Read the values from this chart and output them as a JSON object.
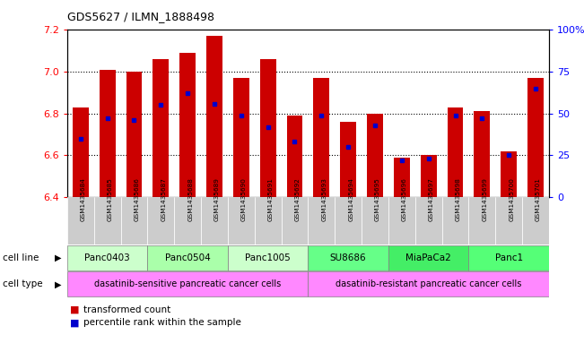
{
  "title": "GDS5627 / ILMN_1888498",
  "samples": [
    "GSM1435684",
    "GSM1435685",
    "GSM1435686",
    "GSM1435687",
    "GSM1435688",
    "GSM1435689",
    "GSM1435690",
    "GSM1435691",
    "GSM1435692",
    "GSM1435693",
    "GSM1435694",
    "GSM1435695",
    "GSM1435696",
    "GSM1435697",
    "GSM1435698",
    "GSM1435699",
    "GSM1435700",
    "GSM1435701"
  ],
  "transformed_count": [
    6.83,
    7.01,
    7.0,
    7.06,
    7.09,
    7.17,
    6.97,
    7.06,
    6.79,
    6.97,
    6.76,
    6.8,
    6.59,
    6.6,
    6.83,
    6.81,
    6.62,
    6.97
  ],
  "percentile": [
    35,
    47,
    46,
    55,
    62,
    56,
    49,
    42,
    33,
    49,
    30,
    43,
    22,
    23,
    49,
    47,
    25,
    65
  ],
  "cell_lines": [
    {
      "name": "Panc0403",
      "start": 0,
      "end": 3,
      "color": "#ccffcc"
    },
    {
      "name": "Panc0504",
      "start": 3,
      "end": 6,
      "color": "#aaffaa"
    },
    {
      "name": "Panc1005",
      "start": 6,
      "end": 9,
      "color": "#ccffcc"
    },
    {
      "name": "SU8686",
      "start": 9,
      "end": 12,
      "color": "#66ff88"
    },
    {
      "name": "MiaPaCa2",
      "start": 12,
      "end": 15,
      "color": "#44ee66"
    },
    {
      "name": "Panc1",
      "start": 15,
      "end": 18,
      "color": "#55ff77"
    }
  ],
  "cell_types": [
    {
      "name": "dasatinib-sensitive pancreatic cancer cells",
      "start": 0,
      "end": 9
    },
    {
      "name": "dasatinib-resistant pancreatic cancer cells",
      "start": 9,
      "end": 18
    }
  ],
  "cell_type_color": "#ff88ff",
  "sample_bg_color": "#cccccc",
  "ylim_left": [
    6.4,
    7.2
  ],
  "ylim_right": [
    0,
    100
  ],
  "yticks_left": [
    6.4,
    6.6,
    6.8,
    7.0,
    7.2
  ],
  "yticks_right": [
    0,
    25,
    50,
    75,
    100
  ],
  "ytick_labels_right": [
    "0",
    "25",
    "50",
    "75",
    "100%"
  ],
  "bar_color": "#cc0000",
  "dot_color": "#0000cc",
  "legend_bar_label": "transformed count",
  "legend_dot_label": "percentile rank within the sample",
  "cell_line_label": "cell line",
  "cell_type_label": "cell type"
}
